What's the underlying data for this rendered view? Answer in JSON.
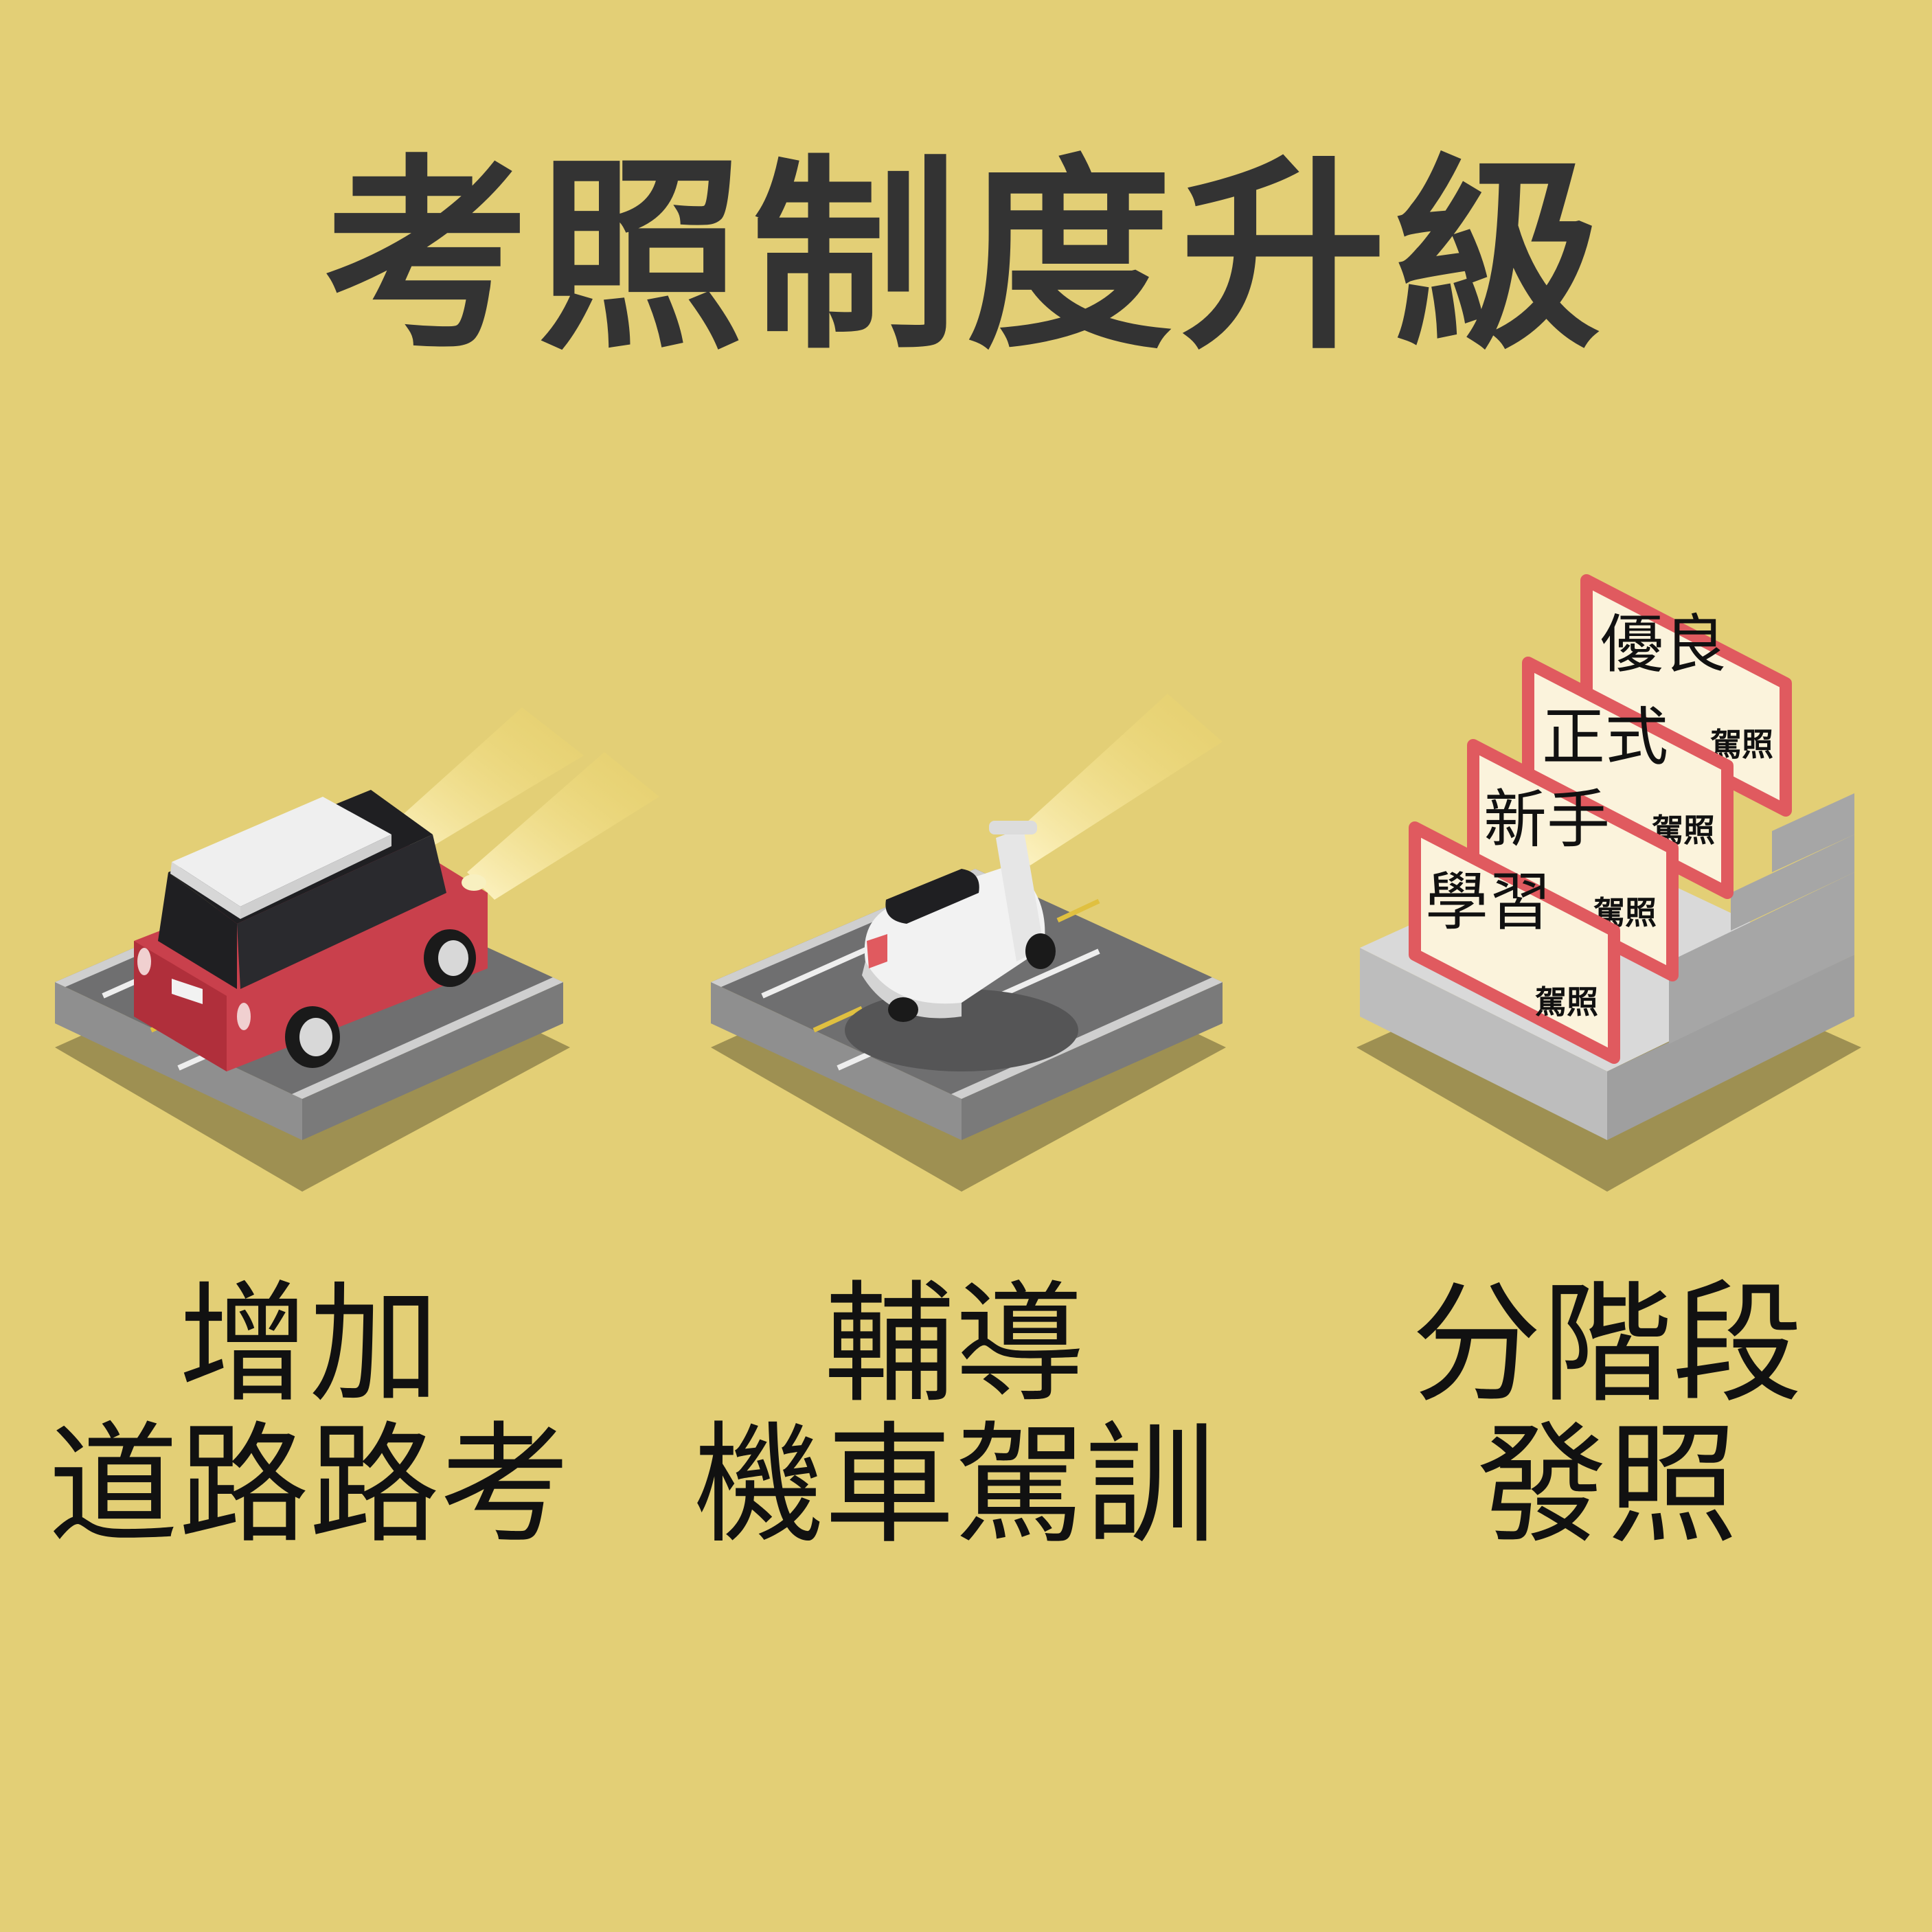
{
  "title": "考照制度升級",
  "items": [
    {
      "line1": "增加",
      "line2": "道路路考",
      "icon": "car-on-road-icon"
    },
    {
      "line1": "輔導",
      "line2": "機車駕訓",
      "icon": "scooter-on-road-icon"
    },
    {
      "line1": "分階段",
      "line2": "發照",
      "icon": "license-stairs-icon"
    }
  ],
  "signs": [
    {
      "main": "學習",
      "sub": "駕照"
    },
    {
      "main": "新手",
      "sub": "駕照"
    },
    {
      "main": "正式",
      "sub": "駕照"
    },
    {
      "main": "優良",
      "sub": "駕照"
    }
  ],
  "colors": {
    "background": "#e3cf76",
    "title": "#333333",
    "car_red": "#c9404c",
    "sign_border": "#e05a5f",
    "sign_fill": "#fbf3dc"
  }
}
